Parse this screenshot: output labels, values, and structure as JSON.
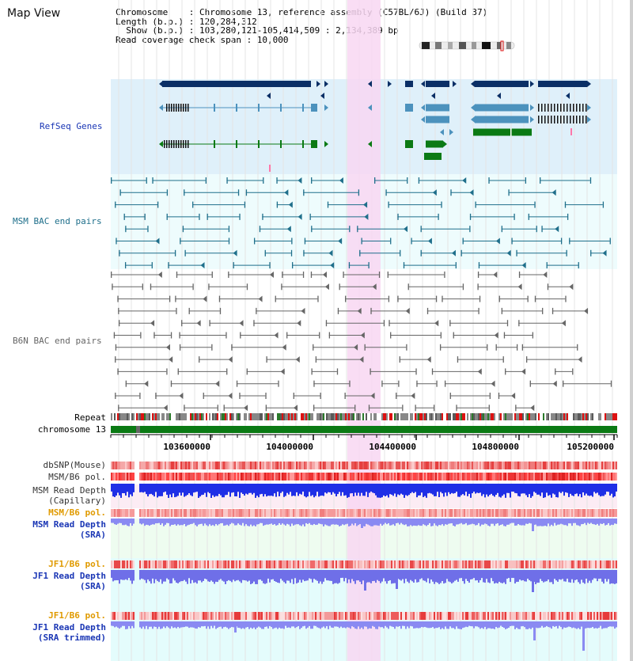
{
  "title": "Map View",
  "info": {
    "line1": "Chromosome    : Chromosome 13, reference assembly (C57BL/6J) (Build 37)",
    "line2": "Length (b.p.) : 120,284,312",
    "line3": "  Show (b.p.) : 103,280,121-105,414,509 : 2,134,389 bp",
    "line4": "Read coverage check span : 10,000"
  },
  "tracks": {
    "refseq": "RefSeq Genes",
    "msm_bac": "MSM BAC end pairs",
    "b6n_bac": "B6N BAC end pairs",
    "repeat": "Repeat",
    "chromosome": "chromosome 13",
    "dbsnp": "dbSNP(Mouse)",
    "msm_b6_pol1": "MSM/B6 pol.",
    "msm_depth_cap_1": "MSM Read Depth",
    "msm_depth_cap_2": "(Capillary)",
    "msm_b6_pol2": "MSM/B6 pol.",
    "msm_depth_sra_1": "MSM Read Depth",
    "msm_depth_sra_2": "(SRA)",
    "jf1_pol1": "JF1/B6 pol.",
    "jf1_depth_sra_1": "JF1 Read Depth",
    "jf1_depth_sra_2": "(SRA)",
    "jf1_pol2": "JF1/B6 pol.",
    "jf1_depth_trim_1": "JF1 Read Depth",
    "jf1_depth_trim_2": "(SRA trimmed)"
  },
  "axis_ticks": [
    "103600000",
    "104000000",
    "104400000",
    "104800000",
    "105200000"
  ],
  "colors": {
    "refseq_bg": "#dff0fa",
    "bac_bg": "#eefcfd",
    "highlight": "#f8d7f2",
    "dark_navy": "#0b2f66",
    "steel_blue": "#4c92bd",
    "green": "#0b7a14",
    "msm_bac": "#1f6f8b",
    "b6n_bac": "#666666",
    "label_blue": "#1a36b5",
    "label_orange": "#e09a00"
  }
}
